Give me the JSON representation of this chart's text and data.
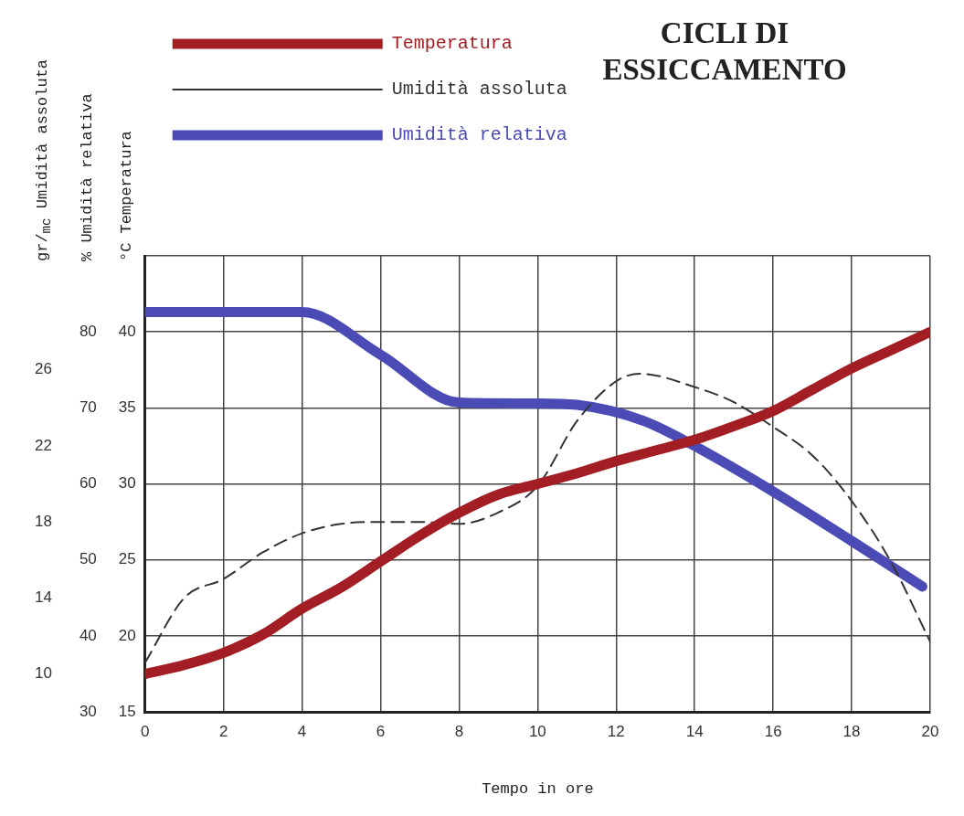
{
  "chart_data": {
    "type": "line",
    "title": "CICLI DI ESSICCAMENTO",
    "xlabel": "Tempo in ore",
    "ylabel": "°C Temperatura",
    "y2label": "% Umidità relativa",
    "y3label": "gr/$_{mc}$ Umidità assoluta",
    "xlim": [
      0,
      20
    ],
    "xticks": [
      0,
      2,
      4,
      6,
      8,
      10,
      12,
      14,
      16,
      18,
      20
    ],
    "ylim": [
      15,
      45
    ],
    "yticks": [
      15,
      20,
      25,
      30,
      35,
      40,
      {
        "value": 45,
        "label": null
      }
    ],
    "y2lim": [
      30,
      90
    ],
    "y2ticks": [
      30,
      40,
      50,
      60,
      70,
      80
    ],
    "y3lim": [
      8,
      32
    ],
    "y3ticks": [
      10,
      14,
      18,
      22,
      26
    ],
    "grid": true,
    "legend": "top left",
    "marker": "none",
    "series": [
      {
        "name": "Temperatura",
        "color": "#a31d24",
        "axis": "y",
        "line_style": "solid",
        "x": [
          0,
          1,
          2,
          3,
          4,
          5,
          6,
          7,
          8,
          9,
          10,
          11,
          12,
          13,
          14,
          15,
          16,
          17,
          18,
          19,
          20
        ],
        "values": [
          17.5,
          18.1,
          18.9,
          20.1,
          21.8,
          23.2,
          24.9,
          26.6,
          28.1,
          29.3,
          30.0,
          30.7,
          31.5,
          32.2,
          32.9,
          33.8,
          34.8,
          36.2,
          37.6,
          38.8,
          40.0
        ]
      },
      {
        "name": "Umidità assoluta",
        "color": "#333333",
        "axis": "y3",
        "line_style": "dashed",
        "x": [
          0,
          1,
          2,
          3,
          4,
          5,
          6,
          7,
          8,
          9,
          10,
          11,
          12,
          12.6,
          14,
          15,
          16,
          17,
          18,
          19,
          20
        ],
        "values": [
          10.6,
          14.0,
          15.0,
          16.4,
          17.4,
          17.9,
          18.0,
          18.0,
          17.9,
          18.5,
          19.9,
          23.3,
          25.4,
          25.8,
          25.1,
          24.3,
          23.0,
          21.5,
          19.1,
          15.9,
          11.7
        ]
      },
      {
        "name": "Umidità relativa",
        "color": "#4b4bb5",
        "axis": "y2",
        "line_style": "solid",
        "x": [
          0,
          2,
          4,
          6,
          8,
          10,
          11,
          12.7,
          14,
          16,
          18,
          19.8
        ],
        "values": [
          82.6,
          82.6,
          82.6,
          77.0,
          70.7,
          70.6,
          70.4,
          68.3,
          65.0,
          59.0,
          52.5,
          46.5
        ]
      }
    ]
  }
}
